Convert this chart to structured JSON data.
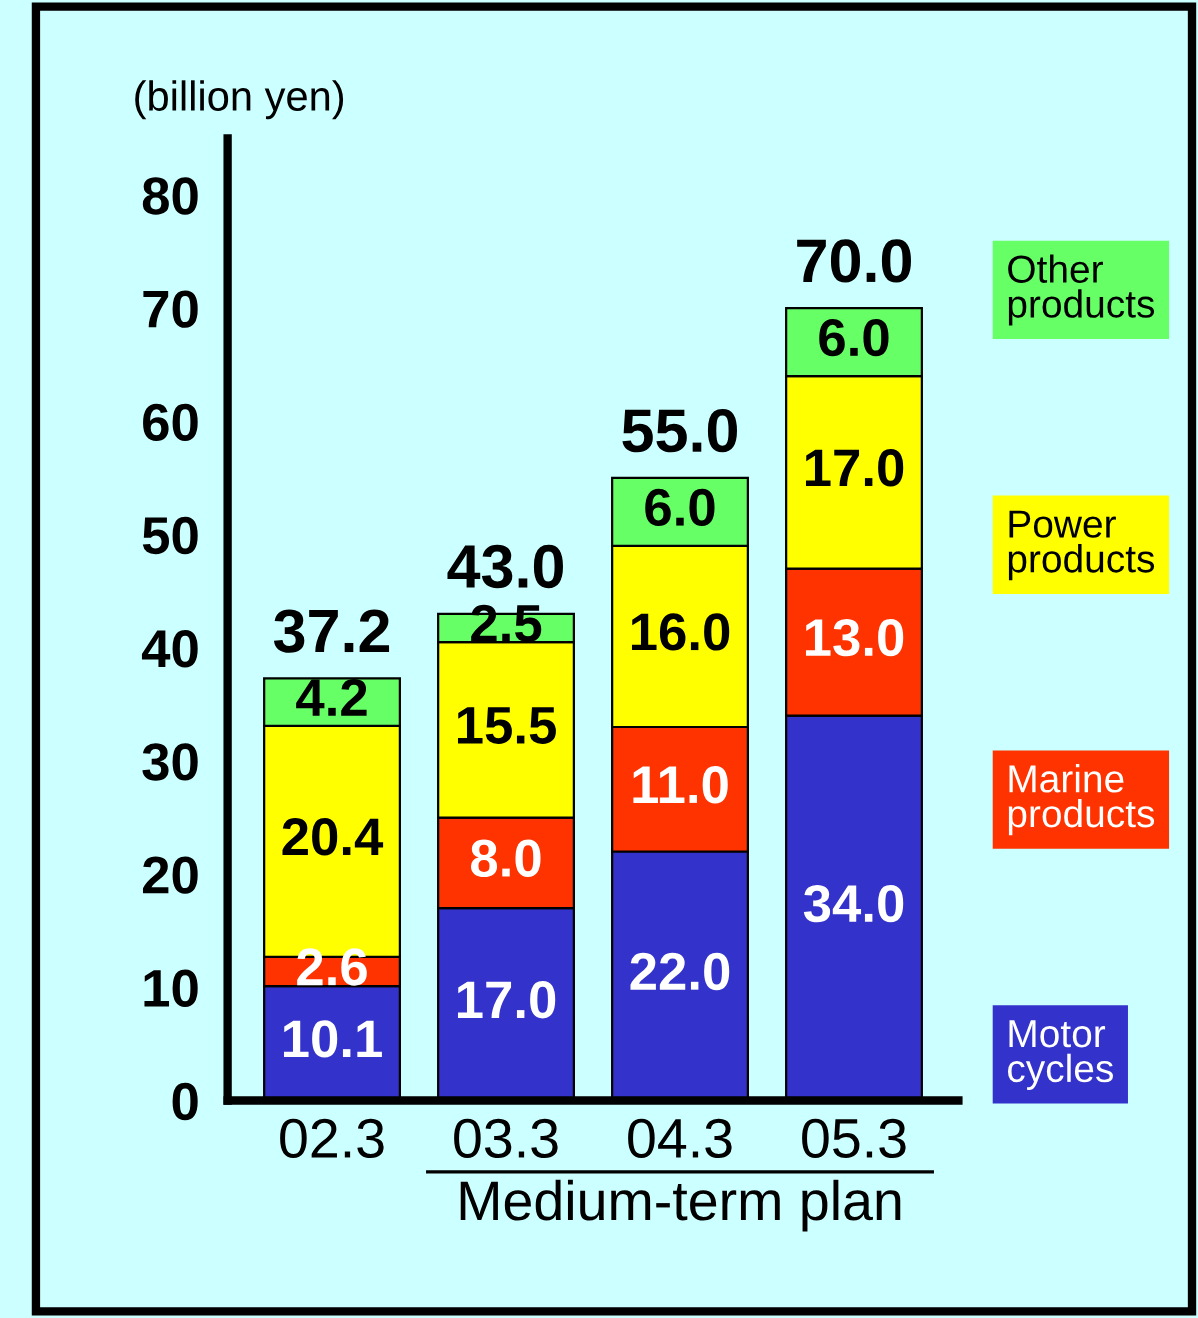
{
  "chart_data": {
    "type": "bar",
    "stacked": true,
    "ylabel": "(billion yen)",
    "categories": [
      "02.3",
      "03.3",
      "04.3",
      "05.3"
    ],
    "series": [
      {
        "name": "Motor cycles",
        "color": "#3333cc",
        "values": [
          10.1,
          17.0,
          22.0,
          34.0
        ],
        "value_labels": [
          "10.1",
          "17.0",
          "22.0",
          "34.0"
        ]
      },
      {
        "name": "Marine products",
        "color": "#ff3300",
        "values": [
          2.6,
          8.0,
          11.0,
          13.0
        ],
        "value_labels": [
          "2.6",
          "8.0",
          "11.0",
          "13.0"
        ]
      },
      {
        "name": "Power products",
        "color": "#ffff00",
        "values": [
          20.4,
          15.5,
          16.0,
          17.0
        ],
        "value_labels": [
          "20.4",
          "15.5",
          "16.0",
          "17.0"
        ]
      },
      {
        "name": "Other products",
        "color": "#66ff66",
        "values": [
          4.2,
          2.5,
          6.0,
          6.0
        ],
        "value_labels": [
          "4.2",
          "2.5",
          "6.0",
          "6.0"
        ]
      }
    ],
    "totals": [
      "37.2",
      "43.0",
      "55.0",
      "70.0"
    ],
    "ylim": [
      0,
      85
    ],
    "yticks": [
      0,
      10,
      20,
      30,
      40,
      50,
      60,
      70,
      80
    ],
    "grid": false,
    "legend": "right",
    "annotations": [
      "Medium-term plan"
    ]
  }
}
